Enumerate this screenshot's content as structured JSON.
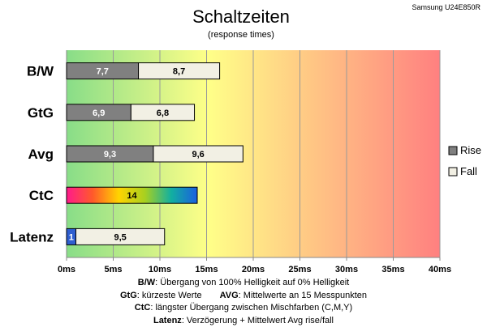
{
  "chart_data": {
    "type": "bar",
    "stacked": true,
    "orientation": "horizontal",
    "title": "Schaltzeiten",
    "subtitle": "(response times)",
    "corner_label": "Samsung U24E850R",
    "categories": [
      "B/W",
      "GtG",
      "Avg",
      "CtC",
      "Latenz"
    ],
    "series": [
      {
        "name": "Rise",
        "values": [
          7.7,
          6.9,
          9.3,
          14,
          1
        ],
        "labels": [
          "7,7",
          "6,9",
          "9,3",
          "14",
          "1"
        ],
        "color": "#808080"
      },
      {
        "name": "Fall",
        "values": [
          8.7,
          6.8,
          9.6,
          0,
          9.5
        ],
        "labels": [
          "8,7",
          "6,8",
          "9,6",
          "",
          "9,5"
        ],
        "color": "#f2f0e4"
      }
    ],
    "special_colors": {
      "CtC": "rainbow",
      "Latenz": "#2f5fd0"
    },
    "xlim": [
      0,
      40
    ],
    "x_ticks": [
      "0ms",
      "5ms",
      "10ms",
      "15ms",
      "20ms",
      "25ms",
      "30ms",
      "35ms",
      "40ms"
    ],
    "grid": true,
    "legend_position": "right",
    "background_gradient": [
      "#88dd88",
      "#ffff88",
      "#ff8080"
    ]
  },
  "notes": {
    "line1": {
      "key": "B/W",
      "text": ":  Übergang von 100% Helligkeit auf 0% Helligkeit"
    },
    "line2a": {
      "key": "GtG",
      "text": ": kürzeste  Werte"
    },
    "line2b": {
      "key": "AVG",
      "text": ": Mittelwerte  an 15 Messpunkten"
    },
    "line3": {
      "key": "CtC",
      "text": ": längster Übergang  zwischen Mischfarben (C,M,Y)"
    },
    "line4": {
      "key": "Latenz",
      "text": ": Verzögerung  + Mittelwert Avg rise/fall"
    }
  }
}
